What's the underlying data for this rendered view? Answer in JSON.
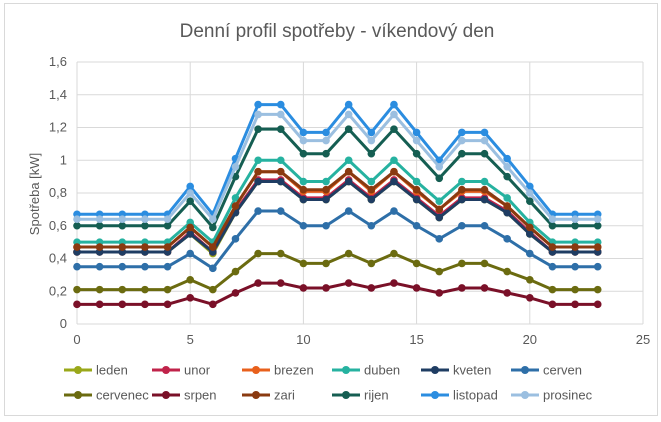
{
  "chart_data": {
    "type": "line",
    "title": "Denní profil spotřeby - víkendový den",
    "xlabel": "",
    "ylabel": "Spotřeba [kW]",
    "xlim": [
      0,
      25
    ],
    "ylim": [
      0,
      1.6
    ],
    "x_ticks": [
      "0",
      "5",
      "10",
      "15",
      "20",
      "25"
    ],
    "y_ticks": [
      "0",
      "0,2",
      "0,4",
      "0,6",
      "0,8",
      "1",
      "1,2",
      "1,4",
      "1,6"
    ],
    "grid": true,
    "legend_position": "bottom",
    "x": [
      0,
      1,
      2,
      3,
      4,
      5,
      6,
      7,
      8,
      9,
      10,
      11,
      12,
      13,
      14,
      15,
      16,
      17,
      18,
      19,
      20,
      21,
      22,
      23
    ],
    "series": [
      {
        "name": "leden",
        "color": "#9aa81a",
        "values": [
          0.44,
          0.44,
          0.44,
          0.44,
          0.44,
          0.55,
          0.43,
          0.68,
          0.87,
          0.87,
          0.76,
          0.76,
          0.87,
          0.76,
          0.87,
          0.76,
          0.65,
          0.76,
          0.76,
          0.68,
          0.55,
          0.44,
          0.44,
          0.44
        ]
      },
      {
        "name": "unor",
        "color": "#c0234a",
        "values": [
          0.44,
          0.44,
          0.44,
          0.44,
          0.44,
          0.56,
          0.44,
          0.69,
          0.88,
          0.88,
          0.77,
          0.77,
          0.88,
          0.77,
          0.88,
          0.77,
          0.66,
          0.77,
          0.77,
          0.69,
          0.56,
          0.44,
          0.44,
          0.44
        ]
      },
      {
        "name": "brezen",
        "color": "#e8601c",
        "values": [
          0.47,
          0.47,
          0.47,
          0.47,
          0.47,
          0.59,
          0.47,
          0.72,
          0.93,
          0.93,
          0.81,
          0.81,
          0.93,
          0.81,
          0.93,
          0.81,
          0.7,
          0.81,
          0.81,
          0.72,
          0.59,
          0.47,
          0.47,
          0.47
        ]
      },
      {
        "name": "duben",
        "color": "#26b2a0",
        "values": [
          0.5,
          0.5,
          0.5,
          0.5,
          0.5,
          0.62,
          0.5,
          0.77,
          1.0,
          1.0,
          0.87,
          0.87,
          1.0,
          0.87,
          1.0,
          0.87,
          0.75,
          0.87,
          0.87,
          0.77,
          0.62,
          0.5,
          0.5,
          0.5
        ]
      },
      {
        "name": "kveten",
        "color": "#1f3d63",
        "values": [
          0.44,
          0.44,
          0.44,
          0.44,
          0.44,
          0.55,
          0.44,
          0.68,
          0.87,
          0.87,
          0.76,
          0.76,
          0.87,
          0.76,
          0.87,
          0.76,
          0.65,
          0.76,
          0.76,
          0.68,
          0.55,
          0.44,
          0.44,
          0.44
        ]
      },
      {
        "name": "cerven",
        "color": "#2e6fa8",
        "values": [
          0.35,
          0.35,
          0.35,
          0.35,
          0.35,
          0.43,
          0.34,
          0.52,
          0.69,
          0.69,
          0.6,
          0.6,
          0.69,
          0.6,
          0.69,
          0.6,
          0.52,
          0.6,
          0.6,
          0.52,
          0.43,
          0.35,
          0.35,
          0.35
        ]
      },
      {
        "name": "cervenec",
        "color": "#6b6b10",
        "values": [
          0.21,
          0.21,
          0.21,
          0.21,
          0.21,
          0.27,
          0.21,
          0.32,
          0.43,
          0.43,
          0.37,
          0.37,
          0.43,
          0.37,
          0.43,
          0.37,
          0.32,
          0.37,
          0.37,
          0.32,
          0.27,
          0.21,
          0.21,
          0.21
        ]
      },
      {
        "name": "srpen",
        "color": "#7a1028",
        "values": [
          0.12,
          0.12,
          0.12,
          0.12,
          0.12,
          0.16,
          0.12,
          0.19,
          0.25,
          0.25,
          0.22,
          0.22,
          0.25,
          0.22,
          0.25,
          0.22,
          0.19,
          0.22,
          0.22,
          0.19,
          0.16,
          0.12,
          0.12,
          0.12
        ]
      },
      {
        "name": "zari",
        "color": "#8a3a10",
        "values": [
          0.47,
          0.47,
          0.47,
          0.47,
          0.47,
          0.59,
          0.47,
          0.72,
          0.93,
          0.93,
          0.82,
          0.82,
          0.93,
          0.82,
          0.93,
          0.82,
          0.7,
          0.82,
          0.82,
          0.72,
          0.59,
          0.47,
          0.47,
          0.47
        ]
      },
      {
        "name": "rijen",
        "color": "#155e52",
        "values": [
          0.6,
          0.6,
          0.6,
          0.6,
          0.6,
          0.75,
          0.59,
          0.9,
          1.19,
          1.19,
          1.04,
          1.04,
          1.19,
          1.04,
          1.19,
          1.04,
          0.89,
          1.04,
          1.04,
          0.9,
          0.75,
          0.6,
          0.6,
          0.6
        ]
      },
      {
        "name": "listopad",
        "color": "#2b8de0",
        "values": [
          0.67,
          0.67,
          0.67,
          0.67,
          0.67,
          0.84,
          0.67,
          1.01,
          1.34,
          1.34,
          1.17,
          1.17,
          1.34,
          1.17,
          1.34,
          1.17,
          1.0,
          1.17,
          1.17,
          1.01,
          0.84,
          0.67,
          0.67,
          0.67
        ]
      },
      {
        "name": "prosinec",
        "color": "#9bbfe0",
        "values": [
          0.64,
          0.64,
          0.64,
          0.64,
          0.64,
          0.8,
          0.64,
          0.96,
          1.28,
          1.28,
          1.12,
          1.12,
          1.28,
          1.12,
          1.28,
          1.12,
          0.96,
          1.12,
          1.12,
          0.96,
          0.8,
          0.64,
          0.64,
          0.64
        ]
      }
    ]
  }
}
